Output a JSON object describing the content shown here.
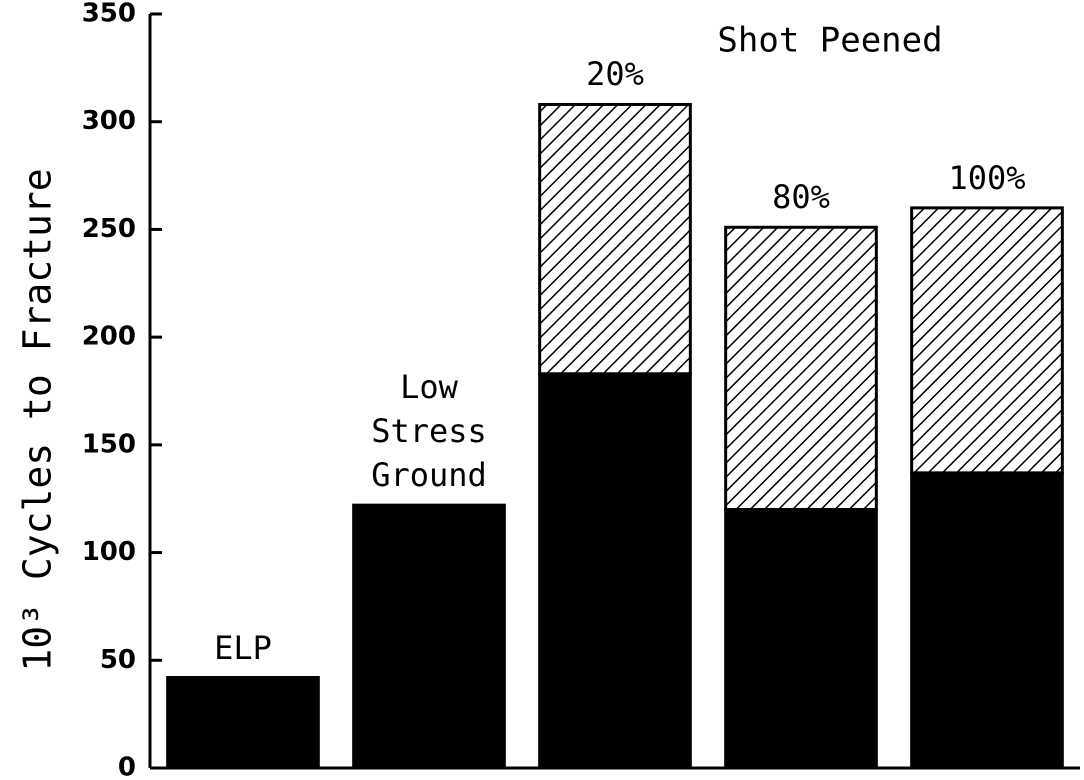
{
  "chart_data": {
    "type": "stacked-bar",
    "ylabel": "10³ Cycles to Fracture",
    "annotations": [
      "Shot Peened"
    ],
    "categories": [
      "ELP",
      "Low Stress Ground",
      "20%",
      "80%",
      "100%"
    ],
    "series": [
      {
        "color": "#000000",
        "values": [
          42,
          122,
          183,
          120,
          137
        ]
      },
      {
        "color": "#000000",
        "pattern": "hatch",
        "values": [
          0,
          0,
          125,
          131,
          123
        ]
      }
    ],
    "ylim": [
      0,
      350
    ],
    "yticks": [
      0,
      50,
      100,
      150,
      200,
      250,
      300,
      350
    ],
    "grid": false
  }
}
